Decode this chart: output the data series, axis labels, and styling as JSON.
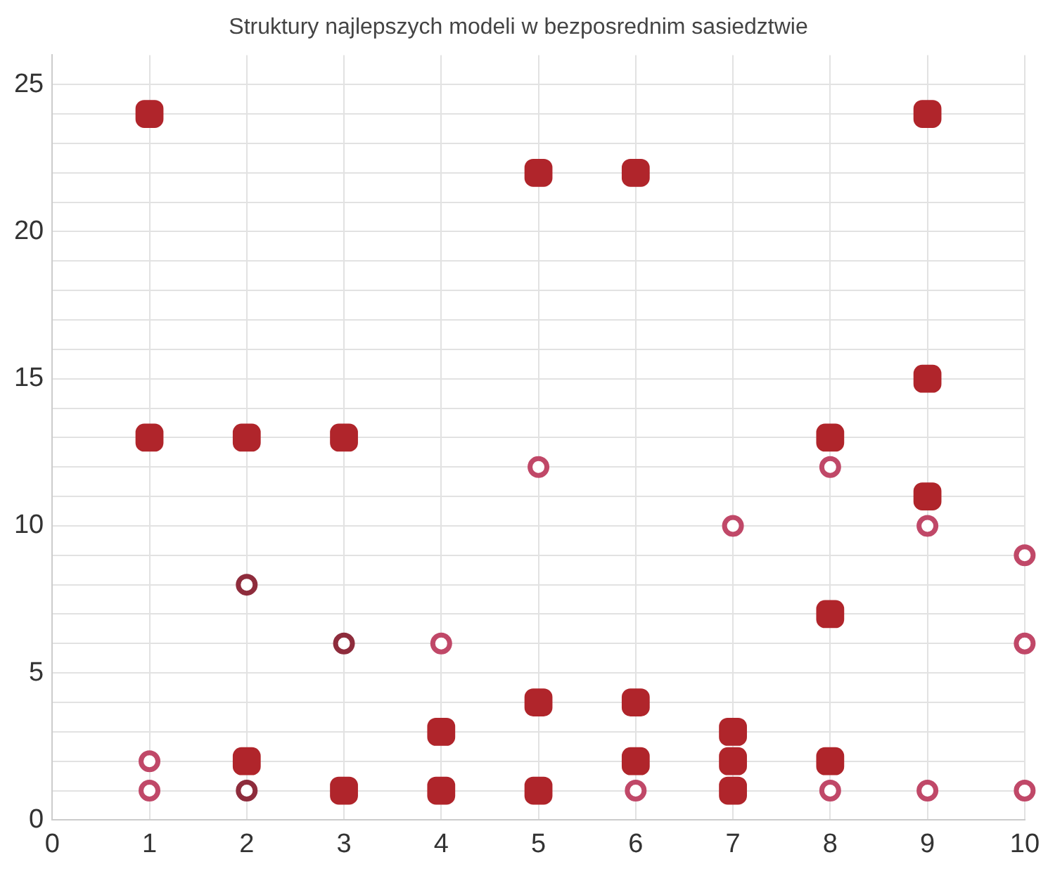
{
  "chart_data": {
    "type": "scatter",
    "title": "Struktury najlepszych modeli w bezposrednim sasiedztwie",
    "series": [
      {
        "marker": "square",
        "color": "#b0252b",
        "x": [
          1,
          1,
          2,
          2,
          3,
          3,
          4,
          4,
          5,
          5,
          5,
          6,
          6,
          6,
          7,
          7,
          7,
          8,
          8,
          8,
          9,
          9,
          9
        ],
        "values": [
          24,
          13,
          13,
          2,
          13,
          1,
          3,
          1,
          22,
          4,
          1,
          22,
          4,
          2,
          3,
          2,
          1,
          13,
          7,
          2,
          24,
          15,
          11
        ]
      },
      {
        "marker": "circle",
        "colors": [
          "#c04868",
          "#c04868",
          "#8e2c3c",
          "#8e2c3c",
          "#8e2c3c",
          "#c04868",
          "#c04868",
          "#c04868",
          "#c04868",
          "#c04868",
          "#c04868",
          "#c04868",
          "#c04868",
          "#c04868",
          "#c04868",
          "#c04868"
        ],
        "x": [
          1,
          1,
          2,
          2,
          3,
          4,
          5,
          6,
          7,
          8,
          8,
          9,
          9,
          10,
          10,
          10
        ],
        "values": [
          2,
          1,
          8,
          1,
          6,
          6,
          12,
          1,
          10,
          12,
          1,
          10,
          1,
          9,
          6,
          1
        ]
      }
    ],
    "xlim": [
      0,
      10
    ],
    "xticks": [
      0,
      1,
      2,
      3,
      4,
      5,
      6,
      7,
      8,
      9,
      10
    ],
    "ylim": [
      0,
      26
    ],
    "yticks": [
      0,
      {
        "value": 1,
        "label": null
      },
      {
        "value": 2,
        "label": null
      },
      {
        "value": 3,
        "label": null
      },
      {
        "value": 4,
        "label": null
      },
      5,
      {
        "value": 6,
        "label": null
      },
      {
        "value": 7,
        "label": null
      },
      {
        "value": 8,
        "label": null
      },
      {
        "value": 9,
        "label": null
      },
      10,
      {
        "value": 11,
        "label": null
      },
      {
        "value": 12,
        "label": null
      },
      {
        "value": 13,
        "label": null
      },
      {
        "value": 14,
        "label": null
      },
      15,
      {
        "value": 16,
        "label": null
      },
      {
        "value": 17,
        "label": null
      },
      {
        "value": 18,
        "label": null
      },
      {
        "value": 19,
        "label": null
      },
      20,
      {
        "value": 21,
        "label": null
      },
      {
        "value": 22,
        "label": null
      },
      {
        "value": 23,
        "label": null
      },
      {
        "value": 24,
        "label": null
      },
      25
    ],
    "grid": true,
    "legend": false
  }
}
